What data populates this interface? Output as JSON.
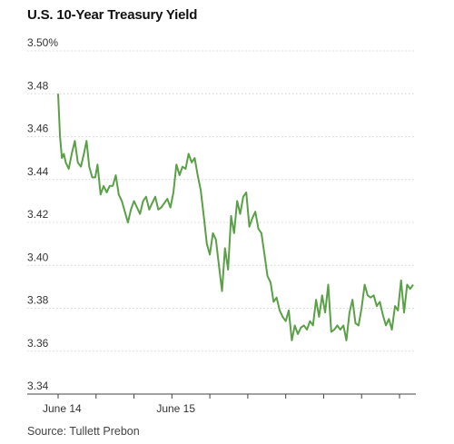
{
  "chart_data": {
    "type": "line",
    "title": "U.S. 10-Year Treasury Yield",
    "source": "Source: Tullett Prebon",
    "ylim": [
      3.34,
      3.5
    ],
    "y_ticks": [
      {
        "value": 3.5,
        "label": "3.50%"
      },
      {
        "value": 3.48,
        "label": "3.48"
      },
      {
        "value": 3.46,
        "label": "3.46"
      },
      {
        "value": 3.44,
        "label": "3.44"
      },
      {
        "value": 3.42,
        "label": "3.42"
      },
      {
        "value": 3.4,
        "label": "3.40"
      },
      {
        "value": 3.38,
        "label": "3.38"
      },
      {
        "value": 3.36,
        "label": "3.36"
      },
      {
        "value": 3.34,
        "label": "3.34"
      }
    ],
    "xlim": [
      0,
      9.5
    ],
    "x_ticks": [
      {
        "value": 0,
        "label": "June 14"
      },
      {
        "value": 1,
        "label": ""
      },
      {
        "value": 2,
        "label": ""
      },
      {
        "value": 3,
        "label": "June 15"
      },
      {
        "value": 4,
        "label": ""
      },
      {
        "value": 5,
        "label": ""
      },
      {
        "value": 6,
        "label": ""
      },
      {
        "value": 7,
        "label": ""
      },
      {
        "value": 8,
        "label": ""
      },
      {
        "value": 9,
        "label": ""
      }
    ],
    "grid": true,
    "line_color": "#5aa046",
    "series": [
      {
        "x": [
          0.0,
          0.05,
          0.1,
          0.15,
          0.2,
          0.28,
          0.36,
          0.44,
          0.52,
          0.6,
          0.68,
          0.75,
          0.82,
          0.9,
          0.98,
          1.04,
          1.12,
          1.2,
          1.28,
          1.36,
          1.44,
          1.52,
          1.6,
          1.68,
          1.76,
          1.84,
          1.92,
          2.0,
          2.08,
          2.16,
          2.24,
          2.32,
          2.4,
          2.48,
          2.56,
          2.64,
          2.72,
          2.8,
          2.88,
          2.96,
          3.04,
          3.12,
          3.2,
          3.28,
          3.36,
          3.44,
          3.52,
          3.6,
          3.68,
          3.76,
          3.84,
          3.92,
          4.0,
          4.08,
          4.16,
          4.24,
          4.32,
          4.4,
          4.48,
          4.56,
          4.64,
          4.72,
          4.8,
          4.88,
          4.96,
          5.04,
          5.12,
          5.2,
          5.28,
          5.36,
          5.44,
          5.52,
          5.6,
          5.68,
          5.76,
          5.84,
          5.92,
          6.0,
          6.08,
          6.16,
          6.24,
          6.32,
          6.4,
          6.48,
          6.56,
          6.64,
          6.72,
          6.8,
          6.88,
          6.96,
          7.04,
          7.12,
          7.2,
          7.28,
          7.36,
          7.44,
          7.52,
          7.6,
          7.68,
          7.76,
          7.84,
          7.92,
          8.0,
          8.08,
          8.16,
          8.24,
          8.32,
          8.4,
          8.48,
          8.56,
          8.64,
          8.72,
          8.8,
          8.88,
          8.96,
          9.04,
          9.12,
          9.2,
          9.28,
          9.36
        ],
        "y": [
          3.48,
          3.46,
          3.45,
          3.452,
          3.448,
          3.445,
          3.452,
          3.458,
          3.448,
          3.446,
          3.452,
          3.458,
          3.446,
          3.441,
          3.441,
          3.447,
          3.433,
          3.437,
          3.434,
          3.437,
          3.437,
          3.442,
          3.433,
          3.43,
          3.425,
          3.42,
          3.426,
          3.43,
          3.427,
          3.424,
          3.43,
          3.432,
          3.426,
          3.429,
          3.432,
          3.426,
          3.427,
          3.429,
          3.431,
          3.427,
          3.434,
          3.447,
          3.442,
          3.446,
          3.445,
          3.452,
          3.448,
          3.45,
          3.442,
          3.435,
          3.423,
          3.41,
          3.405,
          3.415,
          3.412,
          3.4,
          3.388,
          3.408,
          3.398,
          3.423,
          3.415,
          3.43,
          3.424,
          3.432,
          3.434,
          3.418,
          3.422,
          3.425,
          3.417,
          3.415,
          3.405,
          3.395,
          3.392,
          3.383,
          3.385,
          3.379,
          3.376,
          3.374,
          3.379,
          3.365,
          3.372,
          3.368,
          3.371,
          3.372,
          3.37,
          3.374,
          3.372,
          3.384,
          3.376,
          3.386,
          3.378,
          3.391,
          3.369,
          3.37,
          3.372,
          3.37,
          3.372,
          3.365,
          3.378,
          3.384,
          3.373,
          3.372,
          3.38,
          3.391,
          3.386,
          3.385,
          3.386,
          3.381,
          3.383,
          3.377,
          3.372,
          3.375,
          3.37,
          3.381,
          3.379,
          3.393,
          3.378,
          3.391,
          3.389,
          3.391
        ]
      }
    ]
  }
}
